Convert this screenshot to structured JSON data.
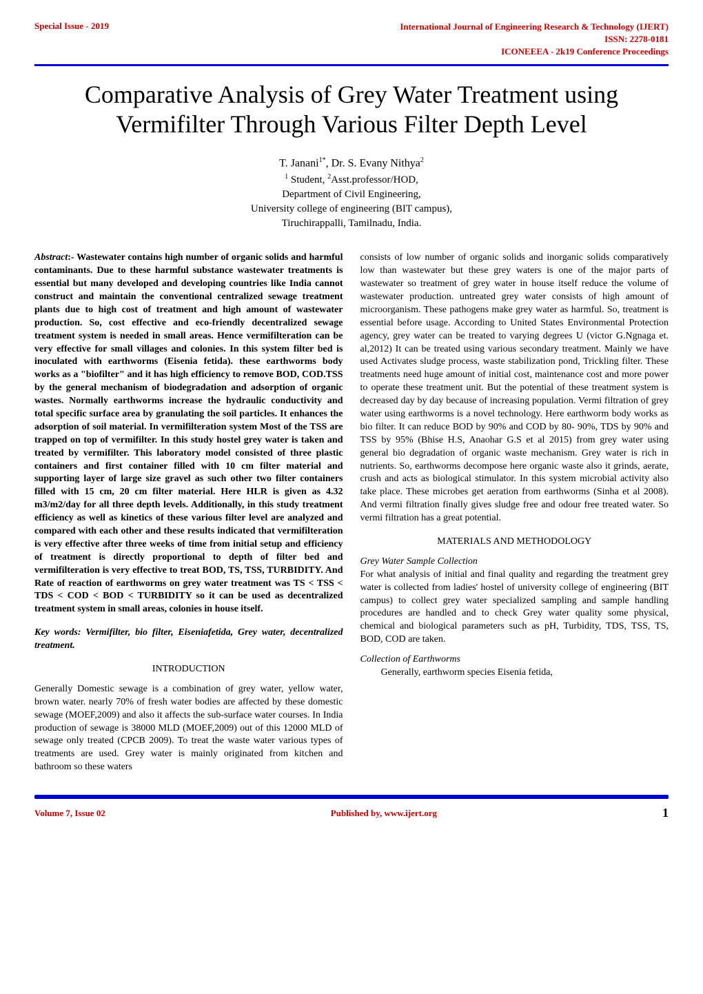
{
  "header": {
    "specialIssue": "Special Issue - 2019",
    "journal": "International Journal of Engineering Research & Technology (IJERT)",
    "issn": "ISSN: 2278-0181",
    "conference": "ICONEEEA - 2k19 Conference Proceedings"
  },
  "title": "Comparative Analysis of Grey Water Treatment using Vermifilter Through Various Filter Depth Level",
  "authors": "T. Janani",
  "authorsSup1": "1*",
  "authorsSep": ", Dr. S. Evany Nithya",
  "authorsSup2": "2",
  "affiliationSup1": "1",
  "affiliationRole1": " Student, ",
  "affiliationSup2": "2",
  "affiliationRole2": "Asst.professor/HOD,",
  "affiliationDept": "Department of Civil Engineering,",
  "affiliationUniv": "University college of engineering (BIT campus),",
  "affiliationLoc": "Tiruchirappalli, Tamilnadu, India.",
  "abstractLabel": "Abstract",
  "abstractText": ":- Wastewater contains high number of organic solids and harmful contaminants. Due to these harmful substance wastewater treatments is essential but many developed and developing countries like India cannot construct and maintain the conventional centralized sewage treatment plants due to high cost of treatment and high amount of wastewater production. So, cost effective and eco-friendly decentralized sewage treatment system is needed in small areas. Hence vermifilteration can be very effective for small villages and colonies. In this system filter bed is inoculated with earthworms (Eisenia fetida). these earthworms body works as a \"biofilter\" and it has high efficiency to remove BOD, COD.TSS by the general mechanism of biodegradation and adsorption of organic wastes. Normally earthworms increase the hydraulic conductivity and total specific surface area by granulating the soil particles. It enhances the adsorption of soil material. In vermifilteration system Most of the TSS are trapped on top of vermifilter. In this study hostel grey water is taken and treated by vermifilter. This laboratory model consisted of three plastic containers and first container filled with 10 cm filter material and supporting layer of large size gravel as such other two filter containers filled with 15 cm, 20 cm filter material. Here HLR is given as 4.32 m3/m2/day for all three depth levels. Additionally, in this study treatment efficiency as well as kinetics of these various filter level are analyzed and compared with each other and these results indicated that vermifilteration is very effective after three weeks of time from initial setup and efficiency of treatment is directly proportional to depth of filter bed and vermifilteration is very effective to treat BOD, TS, TSS, TURBIDITY. And Rate of reaction of earthworms on grey water treatment was TS < TSS < TDS < COD < BOD < TURBIDITY so it can be used as decentralized treatment system in small areas, colonies in house itself.",
  "keywords": "Key words: Vermifilter, bio filter, Eiseniafetida, Grey water, decentralized treatment.",
  "introHeading": "INTRODUCTION",
  "introPara": "Generally Domestic sewage is a combination of grey water, yellow water, brown water. nearly 70% of fresh water bodies are affected by these domestic sewage (MOEF,2009) and also it affects the sub-surface water courses. In India production of sewage is 38000 MLD (MOEF,2009) out of this 12000 MLD of sewage only treated (CPCB 2009). To treat the waste water various types of treatments are used. Grey water is mainly originated from kitchen and bathroom so these waters",
  "rightColPara": "consists of low number of organic solids and inorganic solids comparatively low than wastewater but these grey waters is one of the major parts of wastewater so treatment of grey water in house itself reduce the volume of wastewater production. untreated grey water consists of high amount of microorganism. These pathogens make grey water as harmful. So, treatment is essential before usage. According to United States Environmental Protection agency, grey water can be treated to varying degrees U (victor G.Ngnaga et. al,2012) It can be treated using various secondary treatment. Mainly we have used Activates sludge process, waste stabilization pond, Trickling filter. These treatments need huge amount of initial cost, maintenance cost and more power to operate these treatment unit. But the potential of these treatment system is decreased day by day because of increasing population. Vermi filtration of grey water using earthworms is a novel technology. Here earthworm body works as bio filter. It can reduce BOD by 90% and COD by 80- 90%, TDS by 90% and TSS by 95% (Bhise H.S, Anaohar G.S et al 2015) from grey water using general bio degradation of organic waste mechanism. Grey water is rich in nutrients. So, earthworms decompose here organic waste also it grinds, aerate, crush and acts as biological stimulator. In this system microbial activity also take place. These microbes get aeration from earthworms (Sinha et al 2008). And vermi filtration finally gives sludge free and odour free treated water. So vermi filtration has a great potential.",
  "materialsHeading": "MATERIALS AND METHODOLOGY",
  "greyWaterHeading": "Grey Water Sample Collection",
  "greyWaterPara": "For what analysis of initial and final quality and regarding the treatment grey water is collected from ladies' hostel of university college of engineering (BIT campus) to collect grey water specialized sampling and sample handling procedures are handled and to check Grey water quality some physical, chemical and biological parameters such as pH, Turbidity, TDS, TSS, TS, BOD, COD are taken.",
  "earthwormsHeading": "Collection of Earthworms",
  "earthwormsPara": "Generally, earthworm species Eisenia fetida,",
  "footer": {
    "volume": "Volume 7, Issue 02",
    "publisher": "Published by, www.ijert.org",
    "pageNum": "1"
  }
}
